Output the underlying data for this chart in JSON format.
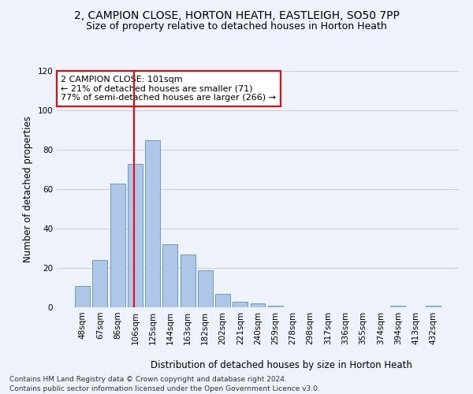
{
  "title1": "2, CAMPION CLOSE, HORTON HEATH, EASTLEIGH, SO50 7PP",
  "title2": "Size of property relative to detached houses in Horton Heath",
  "xlabel": "Distribution of detached houses by size in Horton Heath",
  "ylabel": "Number of detached properties",
  "footnote1": "Contains HM Land Registry data © Crown copyright and database right 2024.",
  "footnote2": "Contains public sector information licensed under the Open Government Licence v3.0.",
  "annotation_line1": "2 CAMPION CLOSE: 101sqm",
  "annotation_line2": "← 21% of detached houses are smaller (71)",
  "annotation_line3": "77% of semi-detached houses are larger (266) →",
  "bar_labels": [
    "48sqm",
    "67sqm",
    "86sqm",
    "106sqm",
    "125sqm",
    "144sqm",
    "163sqm",
    "182sqm",
    "202sqm",
    "221sqm",
    "240sqm",
    "259sqm",
    "278sqm",
    "298sqm",
    "317sqm",
    "336sqm",
    "355sqm",
    "374sqm",
    "394sqm",
    "413sqm",
    "432sqm"
  ],
  "bar_values": [
    11,
    24,
    63,
    73,
    85,
    32,
    27,
    19,
    7,
    3,
    2,
    1,
    0,
    0,
    0,
    0,
    0,
    0,
    1,
    0,
    1
  ],
  "bar_color": "#aec6e8",
  "bar_edge_color": "#5a8fc0",
  "vline_x": 2.95,
  "vline_color": "red",
  "ylim": [
    0,
    120
  ],
  "yticks": [
    0,
    20,
    40,
    60,
    80,
    100,
    120
  ],
  "grid_color": "#cccccc",
  "bg_color": "#eef2fa",
  "annotation_box_color": "white",
  "annotation_box_edge": "red",
  "title_fontsize": 10,
  "subtitle_fontsize": 9,
  "axis_label_fontsize": 8.5,
  "tick_fontsize": 7.5,
  "annotation_fontsize": 8,
  "footnote_fontsize": 6.5
}
